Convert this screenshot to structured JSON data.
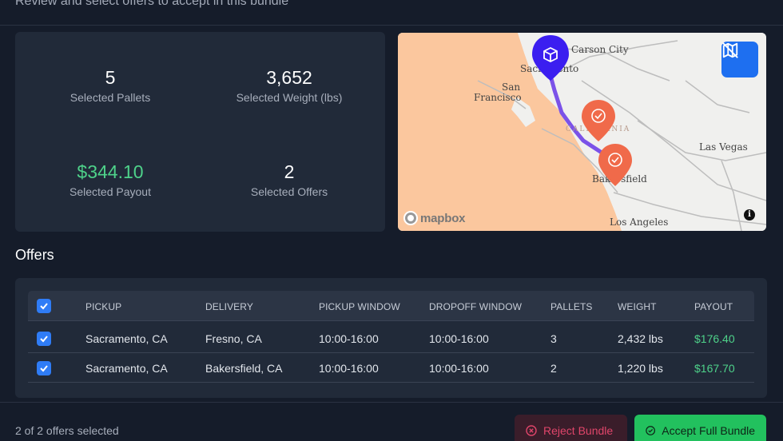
{
  "header": {
    "subtitle": "Review and select offers to accept in this bundle"
  },
  "stats": {
    "pallets_value": "5",
    "pallets_label": "Selected Pallets",
    "weight_value": "3,652",
    "weight_label": "Selected Weight (lbs)",
    "payout_value": "$344.10",
    "payout_label": "Selected Payout",
    "offers_value": "2",
    "offers_label": "Selected Offers"
  },
  "map": {
    "labels": {
      "carson_city": "Carson City",
      "sacramento": "Sacramento",
      "san": "San",
      "francisco": "Francisco",
      "california": "CALIFORNIA",
      "las_vegas": "Las Vegas",
      "bakersfield": "Bakersfield",
      "los_angeles": "Los Angeles"
    },
    "attribution": "mapbox",
    "info": "i",
    "toggle_icon": "map-off-icon",
    "colors": {
      "land": "#f0f0ee",
      "valley": "#fbc79e",
      "route": "#7b52e8",
      "origin_pin": "#3b1ef0",
      "stop_pin": "#f06a4a"
    }
  },
  "offers": {
    "title": "Offers",
    "columns": [
      "PICKUP",
      "DELIVERY",
      "PICKUP WINDOW",
      "DROPOFF WINDOW",
      "PALLETS",
      "WEIGHT",
      "PAYOUT"
    ],
    "rows": [
      {
        "pickup": "Sacramento, CA",
        "delivery": "Fresno, CA",
        "pickup_window": "10:00-16:00",
        "dropoff_window": "10:00-16:00",
        "pallets": "3",
        "weight": "2,432 lbs",
        "payout": "$176.40"
      },
      {
        "pickup": "Sacramento, CA",
        "delivery": "Bakersfield, CA",
        "pickup_window": "10:00-16:00",
        "dropoff_window": "10:00-16:00",
        "pallets": "2",
        "weight": "1,220 lbs",
        "payout": "$167.70"
      }
    ]
  },
  "footer": {
    "status": "2 of 2 offers selected",
    "reject_label": "Reject Bundle",
    "accept_label": "Accept Full Bundle"
  },
  "colors": {
    "background": "#151c2a",
    "card": "#212a39",
    "accent_blue": "#2f7cf6",
    "payout_green": "#4ed28a",
    "accept_green": "#22c15e",
    "reject_red": "#e0456a"
  }
}
